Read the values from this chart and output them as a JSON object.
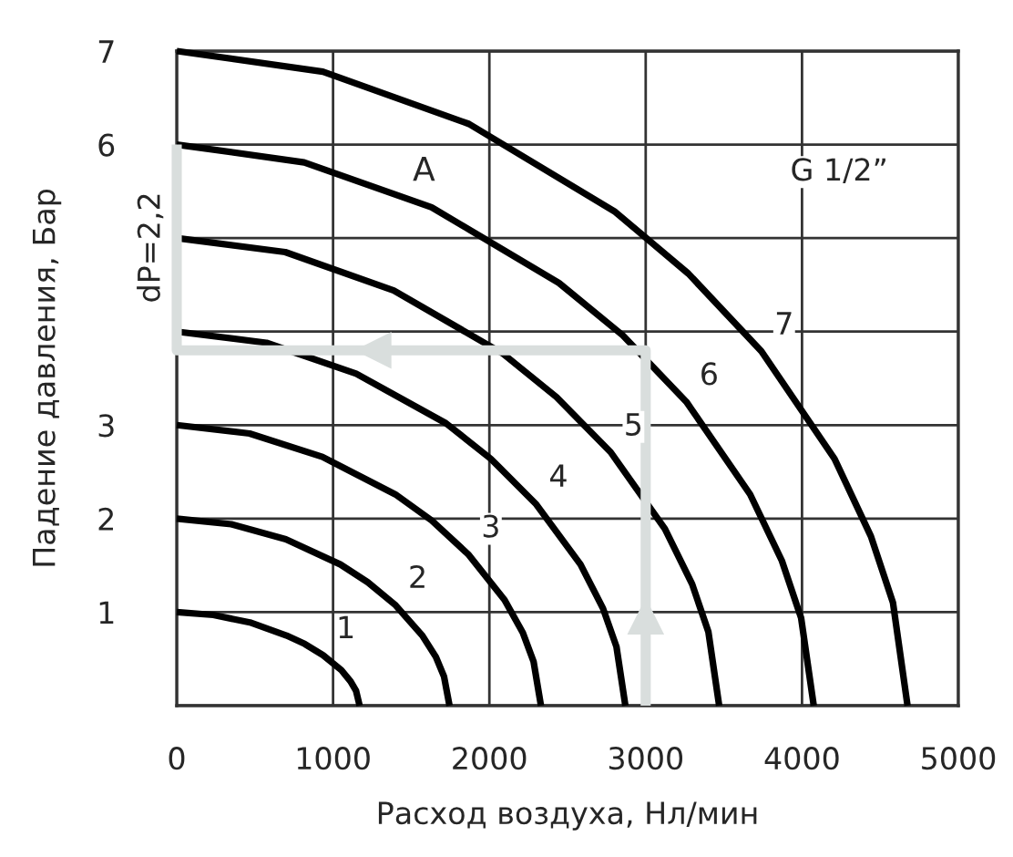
{
  "chart_data": {
    "type": "line",
    "xlabel": "Расход воздуха, Нл/мин",
    "ylabel": "Падение давления, Бар",
    "xlim": [
      0,
      5000
    ],
    "ylim": [
      0,
      7
    ],
    "xticks": [
      0,
      1000,
      2000,
      3000,
      4000,
      5000
    ],
    "yticks": [
      {
        "value": 0,
        "label": null
      },
      1,
      2,
      3,
      {
        "value": 4,
        "label": null
      },
      {
        "value": 5,
        "label": null
      },
      6,
      7
    ],
    "grid": true,
    "line_style": "solid",
    "marker": "none",
    "series": [
      {
        "name": "1",
        "color": "#000000",
        "x": [
          0,
          234,
          468,
          702,
          819,
          936,
          1053,
          1112,
          1147,
          1170
        ],
        "values": [
          1,
          0.97,
          0.89,
          0.75,
          0.66,
          0.54,
          0.38,
          0.26,
          0.16,
          0
        ]
      },
      {
        "name": "2",
        "color": "#000000",
        "x": [
          0,
          349,
          698,
          1047,
          1222,
          1396,
          1571,
          1658,
          1710,
          1745
        ],
        "values": [
          2,
          1.94,
          1.78,
          1.51,
          1.32,
          1.08,
          0.75,
          0.52,
          0.31,
          0
        ]
      },
      {
        "name": "3",
        "color": "#000000",
        "x": [
          0,
          466,
          932,
          1398,
          1631,
          1864,
          2097,
          2214,
          2283,
          2330
        ],
        "values": [
          3,
          2.91,
          2.66,
          2.26,
          1.98,
          1.62,
          1.13,
          0.78,
          0.47,
          0
        ]
      },
      {
        "name": "4",
        "color": "#000000",
        "x": [
          0,
          574,
          1148,
          1722,
          2009,
          2296,
          2583,
          2727,
          2813,
          2870
        ],
        "values": [
          4,
          3.88,
          3.55,
          3.02,
          2.64,
          2.16,
          1.51,
          1.04,
          0.63,
          0
        ]
      },
      {
        "name": "5",
        "color": "#000000",
        "x": [
          0,
          694,
          1388,
          2082,
          2429,
          2776,
          3123,
          3297,
          3401,
          3470
        ],
        "values": [
          5,
          4.85,
          4.44,
          3.77,
          3.3,
          2.71,
          1.89,
          1.3,
          0.79,
          0
        ]
      },
      {
        "name": "6",
        "color": "#000000",
        "x": [
          0,
          815,
          1630,
          2445,
          2853,
          3260,
          3668,
          3871,
          3994,
          4075
        ],
        "values": [
          6,
          5.81,
          5.33,
          4.52,
          3.96,
          3.25,
          2.26,
          1.55,
          0.94,
          0
        ]
      },
      {
        "name": "7",
        "color": "#000000",
        "x": [
          0,
          935,
          1870,
          2805,
          3273,
          3740,
          4208,
          4441,
          4582,
          4675
        ],
        "values": [
          7,
          6.78,
          6.22,
          5.28,
          4.62,
          3.79,
          2.64,
          1.81,
          1.1,
          0
        ]
      },
      {
        "color": "#d9dedd",
        "x": [
          3000,
          3000,
          0,
          0
        ],
        "values": [
          0,
          3.8,
          3.8,
          6
        ]
      }
    ],
    "annotations": [
      "A",
      "G 1/2”",
      "dP=2,2"
    ]
  }
}
